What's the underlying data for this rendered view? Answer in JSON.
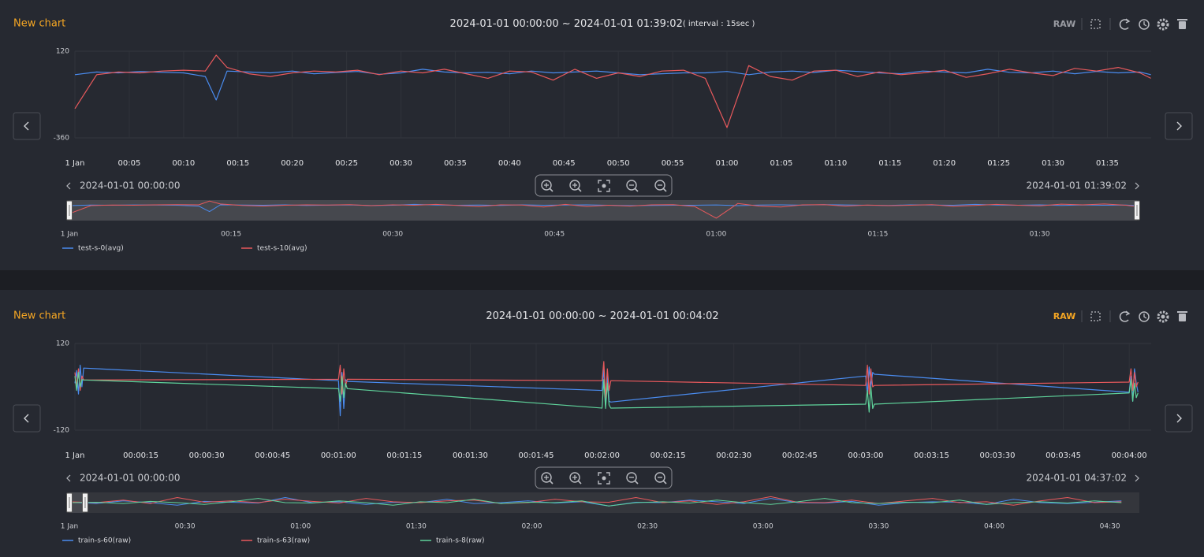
{
  "panels": [
    {
      "title": "New chart",
      "range": "2024-01-01 00:00:00 ~ 2024-01-01 01:39:02",
      "interval": "( interval : 15sec )",
      "raw": "RAW",
      "raw_active": false,
      "nav_start": "2024-01-01 00:00:00",
      "nav_end": "2024-01-01 01:39:02"
    },
    {
      "title": "New chart",
      "range": "2024-01-01 00:00:00 ~ 2024-01-01 00:04:02",
      "raw": "RAW",
      "raw_active": true,
      "nav_start": "2024-01-01 00:00:00",
      "nav_end": "2024-01-01 04:37:02"
    }
  ],
  "chart_data": [
    {
      "type": "line",
      "grid": true,
      "x": [
        0,
        2,
        4,
        6,
        8,
        10,
        12,
        13,
        14,
        16,
        18,
        20,
        22,
        24,
        26,
        28,
        30,
        32,
        34,
        36,
        38,
        40,
        42,
        44,
        46,
        48,
        50,
        52,
        54,
        56,
        58,
        60,
        62,
        64,
        66,
        68,
        70,
        72,
        74,
        76,
        78,
        80,
        82,
        84,
        86,
        88,
        90,
        92,
        94,
        96,
        98,
        99
      ],
      "xlim": [
        0,
        99.03
      ],
      "xticks": [
        {
          "value": 0,
          "label": "1 Jan"
        },
        {
          "value": 5,
          "label": "00:05"
        },
        {
          "value": 10,
          "label": "00:10"
        },
        {
          "value": 15,
          "label": "00:15"
        },
        {
          "value": 20,
          "label": "00:20"
        },
        {
          "value": 25,
          "label": "00:25"
        },
        {
          "value": 30,
          "label": "00:30"
        },
        {
          "value": 35,
          "label": "00:35"
        },
        {
          "value": 40,
          "label": "00:40"
        },
        {
          "value": 45,
          "label": "00:45"
        },
        {
          "value": 50,
          "label": "00:50"
        },
        {
          "value": 55,
          "label": "00:55"
        },
        {
          "value": 60,
          "label": "01:00"
        },
        {
          "value": 65,
          "label": "01:05"
        },
        {
          "value": 70,
          "label": "01:10"
        },
        {
          "value": 75,
          "label": "01:15"
        },
        {
          "value": 80,
          "label": "01:20"
        },
        {
          "value": 85,
          "label": "01:25"
        },
        {
          "value": 90,
          "label": "01:30"
        },
        {
          "value": 95,
          "label": "01:35"
        }
      ],
      "ylim": [
        -360,
        120
      ],
      "yticks": [
        120,
        -360
      ],
      "series": [
        {
          "name": "test-s-0(avg)",
          "color": "#4a8cf0",
          "values": [
            -10,
            5,
            0,
            8,
            3,
            0,
            -20,
            -150,
            10,
            5,
            0,
            10,
            -5,
            2,
            8,
            -8,
            0,
            20,
            5,
            0,
            3,
            -5,
            10,
            0,
            5,
            10,
            0,
            -10,
            -5,
            0,
            0,
            8,
            -10,
            5,
            10,
            2,
            15,
            8,
            0,
            -5,
            10,
            5,
            0,
            20,
            3,
            0,
            10,
            -5,
            8,
            0,
            5,
            -10
          ]
        },
        {
          "name": "test-s-10(avg)",
          "color": "#e8595c",
          "values": [
            -198,
            -10,
            5,
            0,
            10,
            15,
            10,
            98,
            30,
            -5,
            -20,
            0,
            10,
            5,
            15,
            -10,
            10,
            0,
            20,
            -5,
            -30,
            10,
            5,
            -40,
            20,
            -30,
            0,
            -20,
            10,
            15,
            -30,
            -303,
            40,
            -20,
            -40,
            10,
            15,
            -20,
            5,
            -10,
            0,
            15,
            -25,
            -5,
            20,
            0,
            -15,
            25,
            10,
            30,
            0,
            -30
          ]
        }
      ]
    },
    {
      "type": "line",
      "xlim": [
        0,
        99.03
      ],
      "xticks": [
        {
          "value": 0,
          "label": "1 Jan"
        },
        {
          "value": 15,
          "label": "00:15"
        },
        {
          "value": 30,
          "label": "00:30"
        },
        {
          "value": 45,
          "label": "00:45"
        },
        {
          "value": 60,
          "label": "01:00"
        },
        {
          "value": 75,
          "label": "01:15"
        },
        {
          "value": 90,
          "label": "01:30"
        }
      ]
    },
    {
      "type": "line",
      "grid": true,
      "x": [
        0,
        0.4,
        0.8,
        1.2,
        1.6,
        2,
        60,
        60.4,
        60.8,
        61.2,
        61.6,
        62,
        120,
        120.4,
        120.8,
        121.2,
        121.6,
        122,
        180,
        180.4,
        180.8,
        181.2,
        181.6,
        182,
        240,
        240.4,
        240.8,
        241.2,
        241.6,
        242
      ],
      "xlim": [
        0,
        245
      ],
      "xticks": [
        {
          "value": 0,
          "label": "1 Jan"
        },
        {
          "value": 15,
          "label": "00:00:15"
        },
        {
          "value": 30,
          "label": "00:00:30"
        },
        {
          "value": 45,
          "label": "00:00:45"
        },
        {
          "value": 60,
          "label": "00:01:00"
        },
        {
          "value": 75,
          "label": "00:01:15"
        },
        {
          "value": 90,
          "label": "00:01:30"
        },
        {
          "value": 105,
          "label": "00:01:45"
        },
        {
          "value": 120,
          "label": "00:02:00"
        },
        {
          "value": 135,
          "label": "00:02:15"
        },
        {
          "value": 150,
          "label": "00:02:30"
        },
        {
          "value": 165,
          "label": "00:02:45"
        },
        {
          "value": 180,
          "label": "00:03:00"
        },
        {
          "value": 195,
          "label": "00:03:15"
        },
        {
          "value": 210,
          "label": "00:03:30"
        },
        {
          "value": 225,
          "label": "00:03:45"
        },
        {
          "value": 240,
          "label": "00:04:00"
        }
      ],
      "ylim": [
        -120,
        120
      ],
      "yticks": [
        120,
        -120
      ],
      "series": [
        {
          "name": "train-s-60(raw)",
          "color": "#4a8cf0",
          "values": [
            10,
            45,
            -20,
            60,
            0,
            52,
            17,
            -80,
            40,
            -60,
            20,
            15,
            -10,
            50,
            -50,
            30,
            -40,
            -42,
            30,
            -20,
            55,
            0,
            40,
            35,
            -15,
            30,
            -40,
            50,
            10,
            -15
          ]
        },
        {
          "name": "train-s-63(raw)",
          "color": "#e8595c",
          "values": [
            40,
            0,
            50,
            -10,
            30,
            19,
            21,
            60,
            -20,
            50,
            0,
            21,
            17,
            70,
            -30,
            50,
            -10,
            17,
            4,
            60,
            -20,
            50,
            0,
            4,
            13,
            50,
            -10,
            40,
            0,
            13
          ]
        },
        {
          "name": "train-s-8(raw)",
          "color": "#5fd39b",
          "values": [
            30,
            -10,
            40,
            0,
            20,
            19,
            -5,
            -40,
            30,
            -30,
            10,
            -5,
            -59,
            20,
            -60,
            10,
            -50,
            -59,
            -48,
            -10,
            -70,
            0,
            -60,
            -48,
            -17,
            20,
            -40,
            10,
            -30,
            -17
          ]
        }
      ]
    },
    {
      "type": "line",
      "x": [
        0,
        420,
        840,
        1260,
        1680,
        2100,
        2520,
        2940,
        3360,
        3780,
        4200,
        4620,
        5040,
        5460,
        5880,
        6300,
        6720,
        7140,
        7560,
        7980,
        8400,
        8820,
        9240,
        9660,
        10080,
        10500,
        10920,
        11340,
        11760,
        12180,
        12600,
        13020,
        13440,
        13860,
        14280,
        14700,
        15120,
        15540,
        15960,
        16380
      ],
      "xlim": [
        0,
        16622
      ],
      "ylim": [
        -120,
        120
      ],
      "xticks": [
        {
          "value": 0,
          "label": "1 Jan"
        },
        {
          "value": 1800,
          "label": "00:30"
        },
        {
          "value": 3600,
          "label": "01:00"
        },
        {
          "value": 5400,
          "label": "01:30"
        },
        {
          "value": 7200,
          "label": "02:00"
        },
        {
          "value": 9000,
          "label": "02:30"
        },
        {
          "value": 10800,
          "label": "03:00"
        },
        {
          "value": 12600,
          "label": "03:30"
        },
        {
          "value": 14400,
          "label": "04:00"
        },
        {
          "value": 16200,
          "label": "04:30"
        }
      ],
      "series": [
        {
          "name": "train-s-60(raw)",
          "color": "#4a8cf0",
          "values": [
            5,
            -10,
            20,
            0,
            -30,
            15,
            5,
            -5,
            60,
            0,
            10,
            -20,
            5,
            0,
            40,
            -10,
            0,
            20,
            -5,
            10,
            -40,
            5,
            0,
            30,
            10,
            -10,
            50,
            0,
            -5,
            15,
            -30,
            0,
            10,
            5,
            -20,
            40,
            0,
            -10,
            5,
            20
          ]
        },
        {
          "name": "train-s-63(raw)",
          "color": "#e8595c",
          "values": [
            10,
            0,
            30,
            -10,
            60,
            5,
            20,
            0,
            40,
            15,
            -5,
            50,
            10,
            0,
            20,
            30,
            -10,
            0,
            40,
            10,
            5,
            60,
            0,
            20,
            -20,
            10,
            70,
            5,
            0,
            30,
            -10,
            20,
            50,
            0,
            10,
            -30,
            20,
            60,
            0,
            10
          ]
        },
        {
          "name": "train-s-8(raw)",
          "color": "#5fd39b",
          "values": [
            0,
            5,
            -10,
            15,
            0,
            -20,
            10,
            50,
            0,
            -5,
            20,
            0,
            -30,
            10,
            0,
            40,
            -10,
            5,
            0,
            20,
            -40,
            0,
            10,
            -5,
            30,
            0,
            -20,
            10,
            50,
            0,
            -10,
            5,
            0,
            30,
            -20,
            0,
            10,
            -5,
            20,
            0
          ]
        }
      ]
    }
  ]
}
